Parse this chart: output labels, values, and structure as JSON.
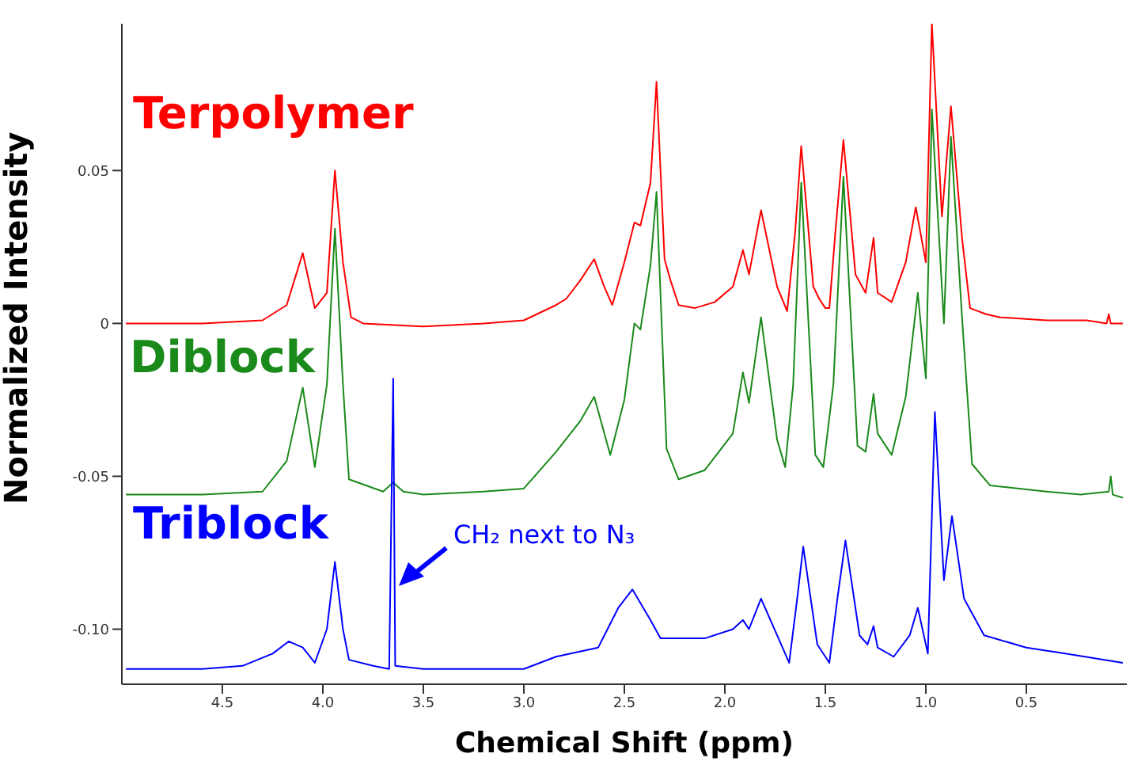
{
  "chart_data": {
    "type": "line",
    "xlabel": "Chemical Shift (ppm)",
    "ylabel": "Normalized Intensity",
    "xlim": [
      5.0,
      0.0
    ],
    "ylim": [
      -0.118,
      0.098
    ],
    "xticks": [
      4.5,
      {
        "value": 4,
        "label": "4.0"
      },
      3.5,
      {
        "value": 3,
        "label": "3.0"
      },
      2.5,
      {
        "value": 2,
        "label": "2.0"
      },
      1.5,
      {
        "value": 1,
        "label": "1.0"
      },
      0.5
    ],
    "yticks": [
      -0.05,
      0,
      0.05,
      {
        "value": -0.1,
        "label": "-0.10"
      }
    ],
    "marker": "none",
    "line_style": "solid",
    "annotations": [
      {
        "text": "CH₂ next to N₃",
        "x": 3.65,
        "y": -0.085
      }
    ],
    "series": [
      {
        "name": "Terpolymer",
        "color": "#ff0000",
        "x": [
          4.98,
          4.6,
          4.3,
          4.18,
          4.1,
          4.04,
          3.98,
          3.94,
          3.9,
          3.86,
          3.8,
          3.5,
          3.2,
          3.0,
          2.84,
          2.79,
          2.72,
          2.65,
          2.6,
          2.56,
          2.5,
          2.45,
          2.42,
          2.37,
          2.34,
          2.3,
          2.27,
          2.23,
          2.15,
          2.05,
          1.96,
          1.91,
          1.88,
          1.82,
          1.74,
          1.69,
          1.65,
          1.62,
          1.56,
          1.53,
          1.5,
          1.48,
          1.45,
          1.41,
          1.35,
          1.3,
          1.26,
          1.24,
          1.17,
          1.1,
          1.05,
          1.0,
          0.97,
          0.92,
          0.875,
          0.82,
          0.78,
          0.7,
          0.63,
          0.4,
          0.2,
          0.1,
          0.09,
          0.08,
          0.02
        ],
        "values": [
          0.0,
          0.0,
          0.001,
          0.006,
          0.023,
          0.005,
          0.01,
          0.05,
          0.02,
          0.002,
          0.0,
          -0.001,
          0.0,
          0.001,
          0.006,
          0.008,
          0.014,
          0.021,
          0.012,
          0.006,
          0.02,
          0.033,
          0.032,
          0.046,
          0.079,
          0.021,
          0.014,
          0.006,
          0.005,
          0.007,
          0.012,
          0.024,
          0.016,
          0.037,
          0.012,
          0.004,
          0.03,
          0.058,
          0.012,
          0.008,
          0.005,
          0.005,
          0.03,
          0.06,
          0.016,
          0.01,
          0.028,
          0.01,
          0.007,
          0.02,
          0.038,
          0.02,
          0.098,
          0.035,
          0.071,
          0.028,
          0.005,
          0.003,
          0.002,
          0.001,
          0.001,
          0.0,
          0.003,
          0.0,
          0.0
        ]
      },
      {
        "name": "Diblock",
        "color": "#1a8a1a",
        "x": [
          4.98,
          4.6,
          4.3,
          4.18,
          4.1,
          4.04,
          3.98,
          3.94,
          3.9,
          3.87,
          3.7,
          3.65,
          3.6,
          3.5,
          3.2,
          3.0,
          2.84,
          2.72,
          2.65,
          2.57,
          2.5,
          2.45,
          2.42,
          2.37,
          2.34,
          2.29,
          2.23,
          2.1,
          1.96,
          1.91,
          1.88,
          1.82,
          1.74,
          1.7,
          1.66,
          1.62,
          1.55,
          1.51,
          1.46,
          1.41,
          1.34,
          1.3,
          1.26,
          1.24,
          1.17,
          1.1,
          1.04,
          1.0,
          0.97,
          0.91,
          0.875,
          0.82,
          0.77,
          0.68,
          0.4,
          0.23,
          0.09,
          0.08,
          0.07,
          0.02
        ],
        "values": [
          -0.056,
          -0.056,
          -0.055,
          -0.045,
          -0.021,
          -0.047,
          -0.02,
          0.031,
          -0.02,
          -0.051,
          -0.055,
          -0.052,
          -0.055,
          -0.056,
          -0.055,
          -0.054,
          -0.042,
          -0.032,
          -0.024,
          -0.043,
          -0.025,
          0.0,
          -0.002,
          0.019,
          0.043,
          -0.041,
          -0.051,
          -0.048,
          -0.036,
          -0.016,
          -0.026,
          0.002,
          -0.038,
          -0.047,
          -0.02,
          0.046,
          -0.043,
          -0.047,
          -0.02,
          0.048,
          -0.04,
          -0.042,
          -0.023,
          -0.036,
          -0.043,
          -0.024,
          0.01,
          -0.018,
          0.07,
          0.0,
          0.061,
          0.002,
          -0.046,
          -0.053,
          -0.055,
          -0.056,
          -0.055,
          -0.05,
          -0.056,
          -0.057
        ]
      },
      {
        "name": "Triblock",
        "color": "#0000ff",
        "x": [
          4.98,
          4.6,
          4.4,
          4.25,
          4.17,
          4.1,
          4.04,
          3.98,
          3.94,
          3.9,
          3.87,
          3.75,
          3.67,
          3.65,
          3.64,
          3.5,
          3.2,
          3.0,
          2.84,
          2.63,
          2.53,
          2.46,
          2.37,
          2.32,
          2.1,
          1.96,
          1.91,
          1.88,
          1.82,
          1.74,
          1.68,
          1.64,
          1.61,
          1.54,
          1.48,
          1.44,
          1.4,
          1.33,
          1.29,
          1.26,
          1.24,
          1.16,
          1.08,
          1.04,
          0.99,
          0.955,
          0.91,
          0.87,
          0.81,
          0.71,
          0.5,
          0.3,
          0.02
        ],
        "values": [
          -0.113,
          -0.113,
          -0.112,
          -0.108,
          -0.104,
          -0.106,
          -0.111,
          -0.1,
          -0.078,
          -0.1,
          -0.11,
          -0.112,
          -0.113,
          -0.018,
          -0.112,
          -0.113,
          -0.113,
          -0.113,
          -0.109,
          -0.106,
          -0.093,
          -0.087,
          -0.097,
          -0.103,
          -0.103,
          -0.1,
          -0.097,
          -0.1,
          -0.09,
          -0.102,
          -0.111,
          -0.09,
          -0.073,
          -0.105,
          -0.111,
          -0.09,
          -0.071,
          -0.102,
          -0.105,
          -0.099,
          -0.106,
          -0.109,
          -0.102,
          -0.093,
          -0.108,
          -0.029,
          -0.084,
          -0.063,
          -0.09,
          -0.102,
          -0.106,
          -0.108,
          -0.111
        ]
      }
    ]
  }
}
